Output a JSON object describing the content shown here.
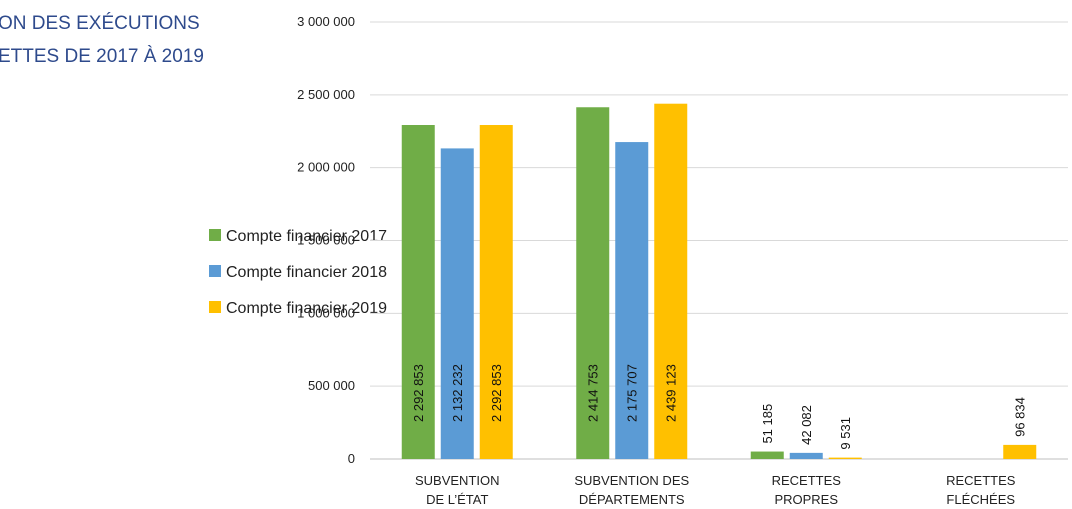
{
  "title": {
    "line1": "ON DES EXÉCUTIONS",
    "line2": "ETTES DE 2017 À 2019"
  },
  "colors": {
    "series2017": "#70AD47",
    "series2018": "#5B9BD5",
    "series2019": "#FFC000",
    "title": "#2E4A8C",
    "grid": "#D9D9D9"
  },
  "chart_data": {
    "type": "bar",
    "categories": [
      [
        "SUBVENTION",
        "DE L’ÉTAT"
      ],
      [
        "SUBVENTION DES",
        "DÉPARTEMENTS"
      ],
      [
        "RECETTES",
        "PROPRES"
      ],
      [
        "RECETTES",
        "FLÉCHÉES"
      ]
    ],
    "series": [
      {
        "name": "Compte financier 2017",
        "values": [
          2292853,
          2414753,
          51185,
          null
        ],
        "labels": [
          "2 292 853",
          "2 414 753",
          "51 185",
          ""
        ]
      },
      {
        "name": "Compte financier 2018",
        "values": [
          2132232,
          2175707,
          42082,
          null
        ],
        "labels": [
          "2 132 232",
          "2 175 707",
          "42 082",
          ""
        ]
      },
      {
        "name": "Compte financier 2019",
        "values": [
          2292853,
          2439123,
          9531,
          96834
        ],
        "labels": [
          "2 292 853",
          "2 439 123",
          "9 531",
          "96 834"
        ]
      }
    ],
    "ylim": [
      0,
      3000000
    ],
    "yticks": [
      0,
      500000,
      1000000,
      1500000,
      2000000,
      2500000,
      3000000
    ],
    "ytick_labels": [
      "0",
      "500 000",
      "1 000 000",
      "1 500 000",
      "2 000 000",
      "2 500 000",
      "3 000 000"
    ],
    "grid": true,
    "legend_position": "left"
  }
}
